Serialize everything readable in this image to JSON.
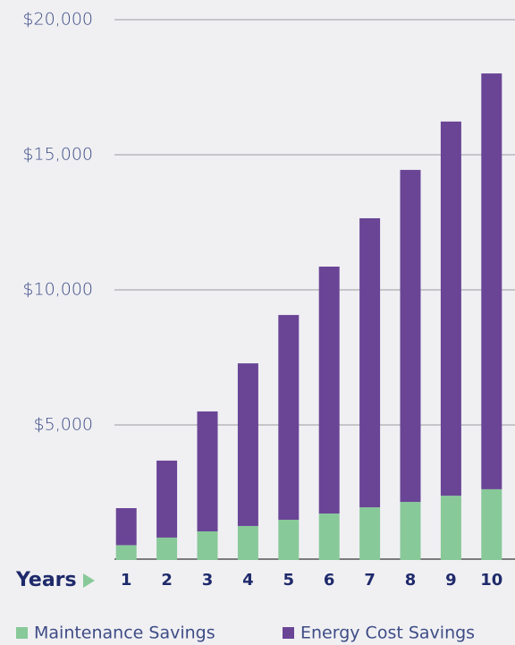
{
  "chart_data": {
    "type": "stacked_bar",
    "x_label": "Years",
    "categories": [
      "1",
      "2",
      "3",
      "4",
      "5",
      "6",
      "7",
      "8",
      "9",
      "10"
    ],
    "series": [
      {
        "name": "Maintenance Savings",
        "color": "#88c999",
        "values": [
          550,
          830,
          1060,
          1260,
          1490,
          1720,
          1950,
          2150,
          2380,
          2620
        ]
      },
      {
        "name": "Energy Cost Savings",
        "color": "#6a4596",
        "values": [
          1370,
          2850,
          4440,
          6020,
          7580,
          9140,
          10700,
          12290,
          13850,
          15390
        ]
      }
    ],
    "ylim": [
      0,
      20000
    ],
    "yticks": [
      {
        "value": 5000,
        "label": "$5,000"
      },
      {
        "value": 10000,
        "label": "$10,000"
      },
      {
        "value": 15000,
        "label": "$15,000"
      },
      {
        "value": 20000,
        "label": "$20,000"
      }
    ],
    "grid": true
  }
}
